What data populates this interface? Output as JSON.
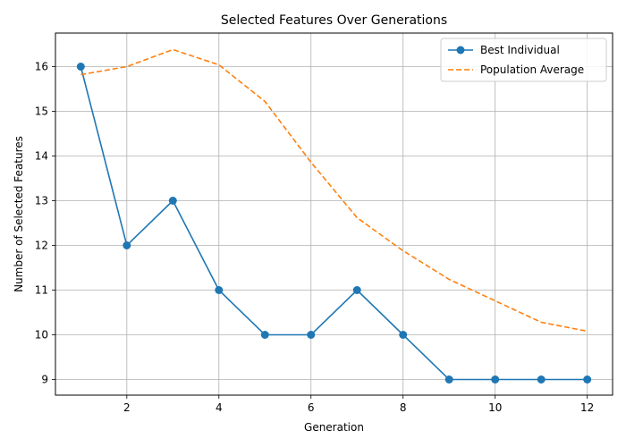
{
  "chart_data": {
    "type": "line",
    "title": "Selected Features Over Generations",
    "xlabel": "Generation",
    "ylabel": "Number of Selected Features",
    "xlim": [
      0.45,
      12.55
    ],
    "ylim": [
      8.65,
      16.75
    ],
    "xticks": [
      2,
      4,
      6,
      8,
      10,
      12
    ],
    "yticks": [
      9,
      10,
      11,
      12,
      13,
      14,
      15,
      16
    ],
    "grid": true,
    "legend_position": "top-right",
    "x": [
      1,
      2,
      3,
      4,
      5,
      6,
      7,
      8,
      9,
      10,
      11,
      12
    ],
    "series": [
      {
        "name": "Best Individual",
        "values": [
          16,
          12,
          13,
          11,
          10,
          10,
          11,
          10,
          9,
          9,
          9,
          9
        ],
        "color": "#1f77b4",
        "style": "solid",
        "marker": "circle"
      },
      {
        "name": "Population Average",
        "values": [
          15.82,
          16.0,
          16.38,
          16.04,
          15.22,
          13.86,
          12.62,
          11.88,
          11.24,
          10.76,
          10.28,
          10.08
        ],
        "color": "#ff7f0e",
        "style": "dashed",
        "marker": "none"
      }
    ]
  }
}
